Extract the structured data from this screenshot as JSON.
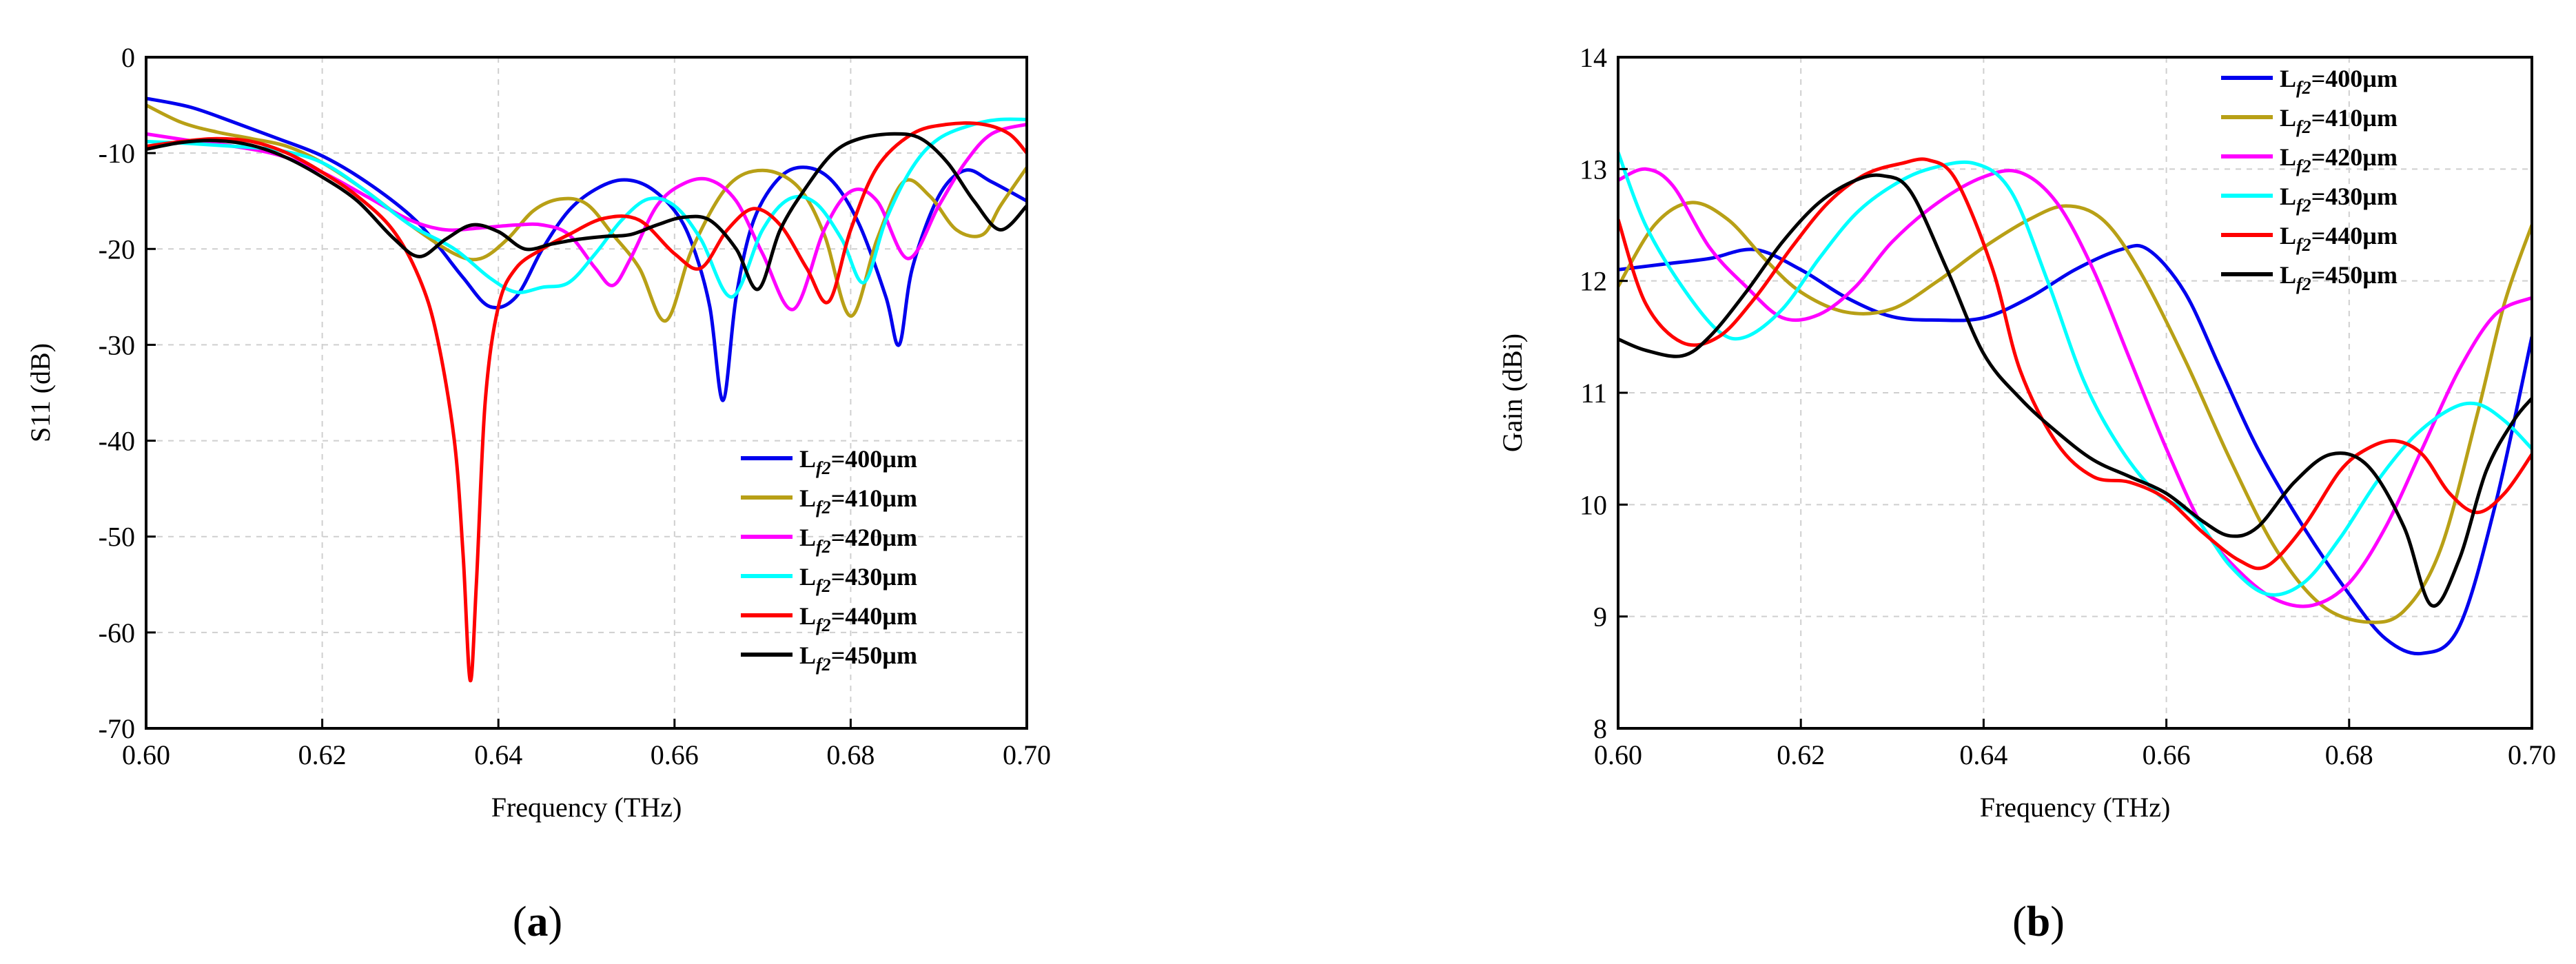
{
  "panel_labels": {
    "a_open": "(",
    "a": "a",
    "a_close": ")",
    "b_open": "(",
    "b": "b",
    "b_close": ")"
  },
  "legend_entries": [
    {
      "prefix": "L",
      "sub": "f2",
      "value": "=400µm",
      "color": "#0000ee"
    },
    {
      "prefix": "L",
      "sub": "f2",
      "value": "=410µm",
      "color": "#b8a016"
    },
    {
      "prefix": "L",
      "sub": "f2",
      "value": "=420µm",
      "color": "#ff00ff"
    },
    {
      "prefix": "L",
      "sub": "f2",
      "value": "=430µm",
      "color": "#00ffff"
    },
    {
      "prefix": "L",
      "sub": "f2",
      "value": "=440µm",
      "color": "#ff0000"
    },
    {
      "prefix": "L",
      "sub": "f2",
      "value": "=450µm",
      "color": "#000000"
    }
  ],
  "chart_data": [
    {
      "type": "line",
      "panel": "a",
      "xlabel": "Frequency (THz)",
      "ylabel": "S11 (dB)",
      "xlim": [
        0.6,
        0.7
      ],
      "ylim": [
        -70,
        0
      ],
      "xticks": [
        "0.60",
        "0.62",
        "0.64",
        "0.66",
        "0.68",
        "0.70"
      ],
      "yticks": [
        "0",
        "-10",
        "-20",
        "-30",
        "-40",
        "-50",
        "-60",
        "-70"
      ],
      "grid": true,
      "legend_position": "bottom-right",
      "series": [
        {
          "name": "Lf2=400µm",
          "x": [
            0.6,
            0.605,
            0.61,
            0.615,
            0.62,
            0.625,
            0.63,
            0.633,
            0.636,
            0.639,
            0.642,
            0.645,
            0.648,
            0.651,
            0.654,
            0.657,
            0.66,
            0.662,
            0.664,
            0.6655,
            0.667,
            0.669,
            0.672,
            0.675,
            0.678,
            0.681,
            0.684,
            0.6855,
            0.687,
            0.69,
            0.693,
            0.696,
            0.7
          ],
          "y": [
            -4.3,
            -5.2,
            -6.8,
            -8.5,
            -10.3,
            -13,
            -16.5,
            -19.5,
            -23,
            -26,
            -25,
            -20,
            -16,
            -13.8,
            -12.8,
            -13.5,
            -16,
            -19.5,
            -26,
            -35.8,
            -25,
            -17,
            -12.5,
            -11.5,
            -13,
            -17.5,
            -25,
            -30,
            -22,
            -14.5,
            -11.8,
            -13,
            -15
          ]
        },
        {
          "name": "Lf2=410µm",
          "x": [
            0.6,
            0.604,
            0.608,
            0.612,
            0.616,
            0.62,
            0.625,
            0.63,
            0.635,
            0.638,
            0.641,
            0.644,
            0.647,
            0.65,
            0.653,
            0.656,
            0.659,
            0.662,
            0.666,
            0.67,
            0.674,
            0.677,
            0.68,
            0.683,
            0.686,
            0.689,
            0.692,
            0.695,
            0.697,
            0.7
          ],
          "y": [
            -5,
            -6.8,
            -7.8,
            -8.5,
            -9.3,
            -11,
            -14,
            -17.5,
            -20.5,
            -21,
            -19,
            -16,
            -14.8,
            -15.3,
            -18.5,
            -22,
            -27.5,
            -20,
            -13.5,
            -11.8,
            -13.5,
            -18.5,
            -27,
            -19,
            -13,
            -14.5,
            -18,
            -18.5,
            -15.5,
            -11.5
          ]
        },
        {
          "name": "Lf2=420µm",
          "x": [
            0.6,
            0.605,
            0.61,
            0.615,
            0.62,
            0.625,
            0.63,
            0.634,
            0.638,
            0.642,
            0.645,
            0.648,
            0.651,
            0.653,
            0.655,
            0.658,
            0.661,
            0.664,
            0.667,
            0.67,
            0.6735,
            0.677,
            0.68,
            0.683,
            0.6865,
            0.69,
            0.693,
            0.696,
            0.7
          ],
          "y": [
            -8,
            -8.7,
            -9.3,
            -10.2,
            -12,
            -14.5,
            -17,
            -18,
            -17.8,
            -17.5,
            -17.5,
            -18.5,
            -22,
            -23.8,
            -21,
            -15.5,
            -13.2,
            -12.8,
            -15,
            -20.5,
            -26.3,
            -18,
            -14,
            -15,
            -21,
            -15.5,
            -11,
            -8,
            -7
          ]
        },
        {
          "name": "Lf2=430µm",
          "x": [
            0.6,
            0.605,
            0.61,
            0.615,
            0.62,
            0.625,
            0.63,
            0.635,
            0.639,
            0.642,
            0.645,
            0.648,
            0.651,
            0.654,
            0.657,
            0.66,
            0.663,
            0.6665,
            0.67,
            0.673,
            0.676,
            0.679,
            0.6815,
            0.684,
            0.687,
            0.69,
            0.694,
            0.697,
            0.7
          ],
          "y": [
            -8.8,
            -9,
            -9.3,
            -9.7,
            -11,
            -14,
            -17.5,
            -20,
            -23,
            -24.5,
            -24,
            -23.5,
            -20.5,
            -17,
            -14.8,
            -15.5,
            -19,
            -25,
            -18,
            -14.8,
            -15.2,
            -19,
            -23.5,
            -17,
            -11.5,
            -8.5,
            -7,
            -6.5,
            -6.5
          ]
        },
        {
          "name": "Lf2=440µm",
          "x": [
            0.6,
            0.604,
            0.608,
            0.612,
            0.616,
            0.62,
            0.624,
            0.628,
            0.631,
            0.633,
            0.635,
            0.636,
            0.6368,
            0.6375,
            0.6385,
            0.64,
            0.642,
            0.645,
            0.648,
            0.652,
            0.656,
            0.66,
            0.663,
            0.666,
            0.669,
            0.672,
            0.675,
            0.6775,
            0.68,
            0.683,
            0.687,
            0.691,
            0.695,
            0.698,
            0.7
          ],
          "y": [
            -9.3,
            -8.8,
            -8.5,
            -8.8,
            -10,
            -12,
            -14.5,
            -18,
            -23,
            -29,
            -40,
            -52,
            -65,
            -55,
            -36,
            -26,
            -22,
            -20,
            -18.5,
            -16.8,
            -17,
            -20.5,
            -22,
            -18,
            -15.8,
            -17.5,
            -22,
            -25.5,
            -18,
            -11.5,
            -8,
            -7,
            -7,
            -8,
            -10
          ]
        },
        {
          "name": "Lf2=450µm",
          "x": [
            0.6,
            0.604,
            0.608,
            0.612,
            0.616,
            0.62,
            0.624,
            0.628,
            0.631,
            0.634,
            0.637,
            0.64,
            0.643,
            0.646,
            0.649,
            0.652,
            0.655,
            0.658,
            0.661,
            0.664,
            0.667,
            0.6695,
            0.672,
            0.675,
            0.678,
            0.681,
            0.685,
            0.688,
            0.691,
            0.694,
            0.697,
            0.7
          ],
          "y": [
            -9.6,
            -8.9,
            -8.7,
            -9.2,
            -10.5,
            -12.5,
            -15,
            -18.8,
            -20.8,
            -19,
            -17.5,
            -18.2,
            -20,
            -19.5,
            -19,
            -18.7,
            -18.5,
            -17.5,
            -16.7,
            -17,
            -20,
            -24.2,
            -18,
            -13.5,
            -10,
            -8.5,
            -8,
            -8.5,
            -11,
            -15,
            -18,
            -15.5
          ]
        }
      ]
    },
    {
      "type": "line",
      "panel": "b",
      "xlabel": "Frequency (THz)",
      "ylabel": "Gain (dBi)",
      "xlim": [
        0.6,
        0.7
      ],
      "ylim": [
        8,
        14
      ],
      "xticks": [
        "0.60",
        "0.62",
        "0.64",
        "0.66",
        "0.68",
        "0.70"
      ],
      "yticks": [
        "14",
        "13",
        "12",
        "11",
        "10",
        "9",
        "8"
      ],
      "grid": true,
      "legend_position": "top-right",
      "series": [
        {
          "name": "Lf2=400µm",
          "x": [
            0.6,
            0.605,
            0.61,
            0.615,
            0.62,
            0.625,
            0.63,
            0.635,
            0.64,
            0.645,
            0.65,
            0.655,
            0.658,
            0.662,
            0.666,
            0.67,
            0.675,
            0.68,
            0.684,
            0.688,
            0.692,
            0.696,
            0.7
          ],
          "y": [
            12.1,
            12.15,
            12.2,
            12.28,
            12.1,
            11.85,
            11.68,
            11.65,
            11.67,
            11.85,
            12.1,
            12.28,
            12.28,
            11.9,
            11.2,
            10.5,
            9.8,
            9.2,
            8.8,
            8.67,
            8.9,
            10,
            11.5
          ]
        },
        {
          "name": "Lf2=410µm",
          "x": [
            0.6,
            0.604,
            0.608,
            0.612,
            0.616,
            0.62,
            0.625,
            0.63,
            0.635,
            0.64,
            0.645,
            0.649,
            0.653,
            0.657,
            0.662,
            0.667,
            0.672,
            0.677,
            0.682,
            0.686,
            0.69,
            0.694,
            0.697,
            0.7
          ],
          "y": [
            11.95,
            12.5,
            12.7,
            12.55,
            12.2,
            11.9,
            11.72,
            11.75,
            12,
            12.3,
            12.55,
            12.67,
            12.55,
            12.1,
            11.3,
            10.4,
            9.6,
            9.1,
            8.95,
            9.05,
            9.6,
            10.8,
            11.8,
            12.5
          ]
        },
        {
          "name": "Lf2=420µm",
          "x": [
            0.6,
            0.603,
            0.606,
            0.61,
            0.614,
            0.618,
            0.622,
            0.626,
            0.63,
            0.635,
            0.64,
            0.644,
            0.648,
            0.652,
            0.656,
            0.66,
            0.664,
            0.668,
            0.672,
            0.676,
            0.68,
            0.684,
            0.688,
            0.692,
            0.696,
            0.7
          ],
          "y": [
            12.9,
            13,
            12.85,
            12.3,
            11.95,
            11.67,
            11.7,
            11.95,
            12.35,
            12.7,
            12.93,
            12.97,
            12.7,
            12.1,
            11.3,
            10.5,
            9.8,
            9.4,
            9.15,
            9.1,
            9.3,
            9.8,
            10.5,
            11.2,
            11.7,
            11.85
          ]
        },
        {
          "name": "Lf2=430µm",
          "x": [
            0.6,
            0.603,
            0.607,
            0.611,
            0.614,
            0.618,
            0.622,
            0.626,
            0.63,
            0.634,
            0.639,
            0.643,
            0.647,
            0.651,
            0.655,
            0.659,
            0.663,
            0.667,
            0.671,
            0.675,
            0.679,
            0.683,
            0.687,
            0.691,
            0.694,
            0.697,
            0.7
          ],
          "y": [
            13.15,
            12.5,
            11.95,
            11.55,
            11.5,
            11.75,
            12.2,
            12.6,
            12.85,
            13,
            13.05,
            12.8,
            12,
            11.1,
            10.5,
            10.1,
            9.9,
            9.45,
            9.2,
            9.3,
            9.7,
            10.2,
            10.6,
            10.85,
            10.9,
            10.75,
            10.5
          ]
        },
        {
          "name": "Lf2=440µm",
          "x": [
            0.6,
            0.603,
            0.607,
            0.611,
            0.615,
            0.619,
            0.623,
            0.627,
            0.631,
            0.634,
            0.637,
            0.641,
            0.644,
            0.648,
            0.652,
            0.656,
            0.66,
            0.664,
            0.668,
            0.671,
            0.675,
            0.679,
            0.682,
            0.685,
            0.688,
            0.691,
            0.694,
            0.697,
            0.7
          ],
          "y": [
            12.55,
            11.8,
            11.45,
            11.5,
            11.85,
            12.3,
            12.7,
            12.95,
            13.05,
            13.08,
            12.9,
            12.1,
            11.2,
            10.55,
            10.25,
            10.2,
            10.05,
            9.75,
            9.5,
            9.45,
            9.8,
            10.3,
            10.5,
            10.57,
            10.45,
            10.1,
            9.93,
            10.1,
            10.45
          ]
        },
        {
          "name": "Lf2=450µm",
          "x": [
            0.6,
            0.603,
            0.607,
            0.61,
            0.614,
            0.618,
            0.622,
            0.626,
            0.629,
            0.632,
            0.636,
            0.64,
            0.644,
            0.648,
            0.652,
            0.656,
            0.66,
            0.664,
            0.667,
            0.67,
            0.674,
            0.678,
            0.682,
            0.686,
            0.689,
            0.692,
            0.695,
            0.698,
            0.7
          ],
          "y": [
            11.48,
            11.38,
            11.33,
            11.5,
            11.9,
            12.35,
            12.7,
            12.9,
            12.94,
            12.8,
            12.1,
            11.35,
            10.95,
            10.65,
            10.4,
            10.25,
            10.1,
            9.85,
            9.72,
            9.8,
            10.2,
            10.45,
            10.35,
            9.8,
            9.1,
            9.5,
            10.3,
            10.75,
            10.95
          ]
        }
      ]
    }
  ]
}
